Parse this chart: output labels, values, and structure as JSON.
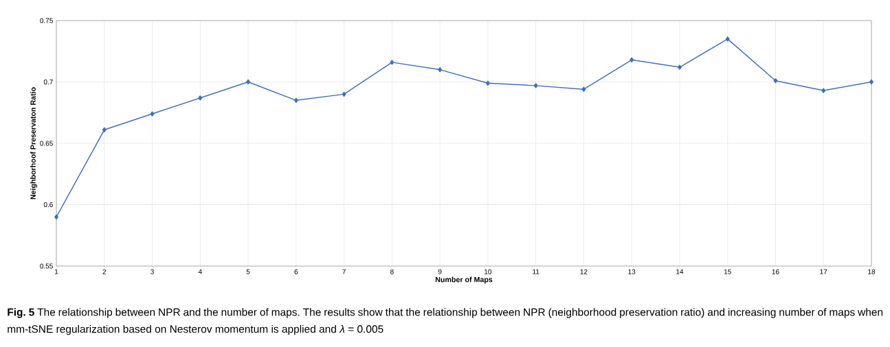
{
  "chart_data": {
    "type": "line",
    "xlabel": "Number of Maps",
    "ylabel": "Neighborhoof Preservaton Ratio",
    "x": [
      1,
      2,
      3,
      4,
      5,
      6,
      7,
      8,
      9,
      10,
      11,
      12,
      13,
      14,
      15,
      16,
      17,
      18
    ],
    "series": [
      {
        "color": "#3d6fbf",
        "values": [
          0.59,
          0.661,
          0.674,
          0.687,
          0.7,
          0.685,
          0.69,
          0.716,
          0.71,
          0.699,
          0.697,
          0.694,
          0.718,
          0.712,
          0.735,
          0.701,
          0.693,
          0.7
        ]
      }
    ],
    "xlim": [
      1,
      18
    ],
    "xticks": [
      1,
      2,
      3,
      4,
      5,
      6,
      7,
      8,
      9,
      10,
      11,
      12,
      13,
      14,
      15,
      16,
      17,
      18
    ],
    "ylim": [
      0.55,
      0.75
    ],
    "yticks": [
      0.55,
      0.6,
      0.65,
      0.7,
      0.75
    ],
    "grid": true,
    "marker": "diamond",
    "line_style": "solid",
    "annotations": [
      "**Fig. 5** The relationship between NPR and the number of maps. The results show that the relationship between NPR (neighborhood preservation ratio) and increasing number of maps when mm-tSNE regularization based on Nesterov momentum is applied and *λ* = 0.005"
    ]
  }
}
